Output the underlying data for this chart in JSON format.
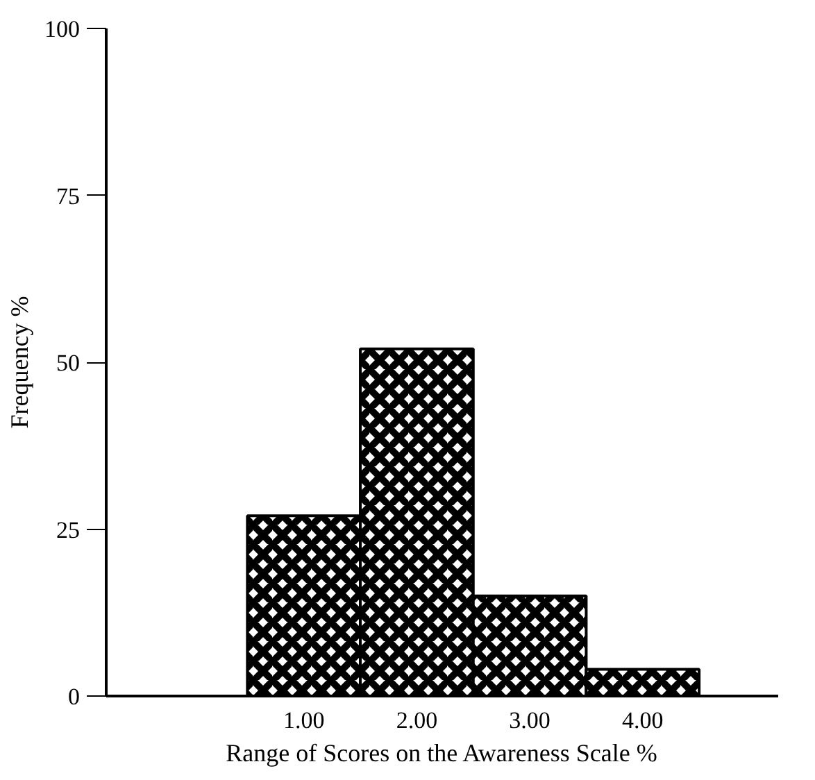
{
  "chart_data": {
    "type": "bar",
    "xlabel": "Range of Scores on the Awareness Scale %",
    "ylabel": "Frequency %",
    "categories": [
      "1.00",
      "2.00",
      "3.00",
      "4.00"
    ],
    "values": [
      27,
      52,
      15,
      4
    ],
    "color": "#000000",
    "ylim": [
      0,
      100
    ],
    "yticks": [
      0,
      25,
      50,
      75,
      100
    ],
    "grid": false
  }
}
